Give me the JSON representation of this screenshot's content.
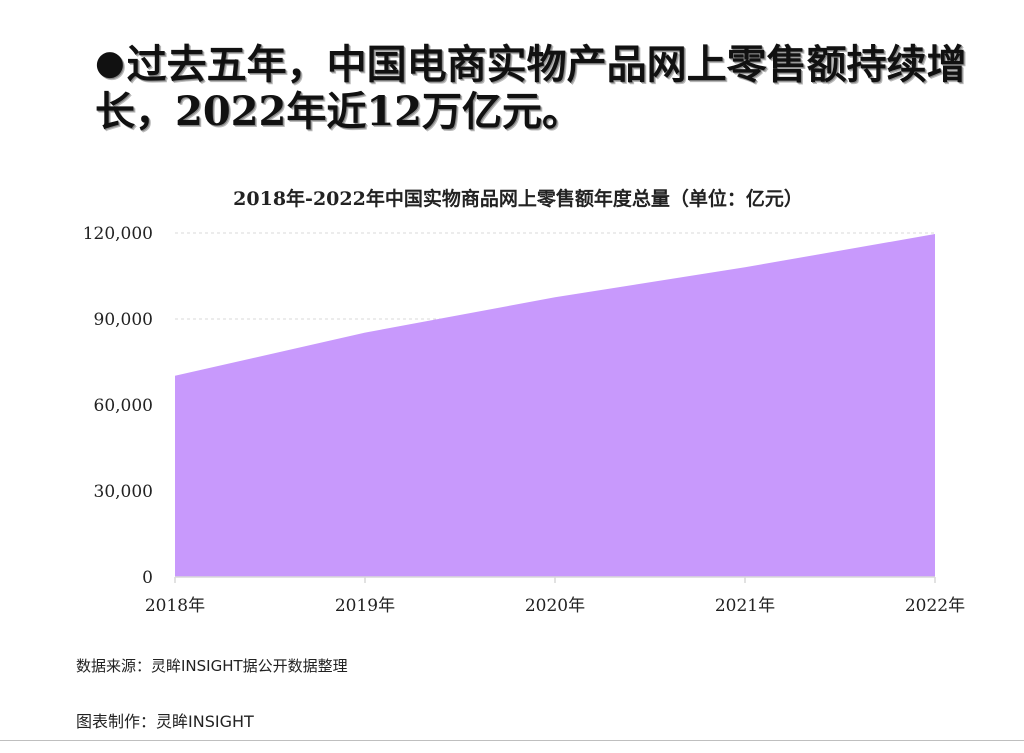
{
  "headline": {
    "bullet": "●",
    "text": "过去五年，中国电商实物产品网上零售额持续增长，2022年近12万亿元。"
  },
  "chart_data": {
    "type": "area",
    "title": "2018年-2022年中国实物商品网上零售额年度总量（单位：亿元）",
    "categories": [
      "2018年",
      "2019年",
      "2020年",
      "2021年",
      "2022年"
    ],
    "series": [
      {
        "values": [
          70198,
          85239,
          97590,
          108042,
          119642
        ]
      }
    ],
    "ylim": [
      0,
      120000
    ],
    "yticks": [
      0,
      30000,
      60000,
      90000,
      120000
    ],
    "ytick_labels": [
      "0",
      "30,000",
      "60,000",
      "90,000",
      "120,000"
    ],
    "grid": true,
    "fill_color": "#c899fc",
    "grid_color": "#d9d9d9",
    "axis_color": "#d9d9d9"
  },
  "footer": {
    "source": "数据来源：灵眸INSIGHT据公开数据整理",
    "credit": "图表制作：灵眸INSIGHT"
  }
}
